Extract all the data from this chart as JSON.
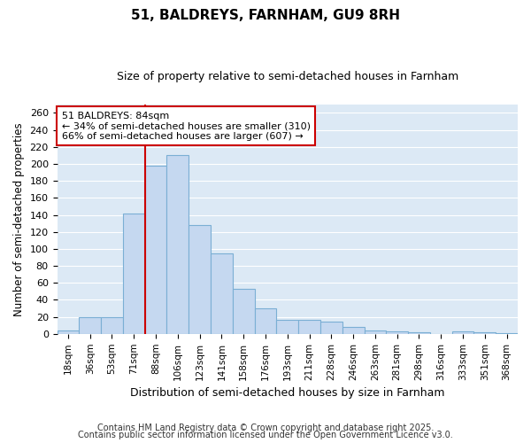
{
  "title": "51, BALDREYS, FARNHAM, GU9 8RH",
  "subtitle": "Size of property relative to semi-detached houses in Farnham",
  "xlabel": "Distribution of semi-detached houses by size in Farnham",
  "ylabel": "Number of semi-detached properties",
  "categories": [
    "18sqm",
    "36sqm",
    "53sqm",
    "71sqm",
    "88sqm",
    "106sqm",
    "123sqm",
    "141sqm",
    "158sqm",
    "176sqm",
    "193sqm",
    "211sqm",
    "228sqm",
    "246sqm",
    "263sqm",
    "281sqm",
    "298sqm",
    "316sqm",
    "333sqm",
    "351sqm",
    "368sqm"
  ],
  "values": [
    4,
    20,
    20,
    142,
    198,
    210,
    128,
    95,
    53,
    30,
    16,
    16,
    14,
    8,
    4,
    3,
    2,
    0,
    3,
    2,
    1
  ],
  "bar_color": "#c5d8f0",
  "bar_edge_color": "#7bafd4",
  "vline_color": "#cc0000",
  "annotation_title": "51 BALDREYS: 84sqm",
  "annotation_line1": "← 34% of semi-detached houses are smaller (310)",
  "annotation_line2": "66% of semi-detached houses are larger (607) →",
  "annotation_box_color": "#ffffff",
  "annotation_box_edge": "#cc0000",
  "ylim": [
    0,
    270
  ],
  "yticks": [
    0,
    20,
    40,
    60,
    80,
    100,
    120,
    140,
    160,
    180,
    200,
    220,
    240,
    260
  ],
  "plot_bg": "#dce9f5",
  "fig_bg": "#ffffff",
  "grid_color": "#ffffff",
  "footnote1": "Contains HM Land Registry data © Crown copyright and database right 2025.",
  "footnote2": "Contains public sector information licensed under the Open Government Licence v3.0."
}
